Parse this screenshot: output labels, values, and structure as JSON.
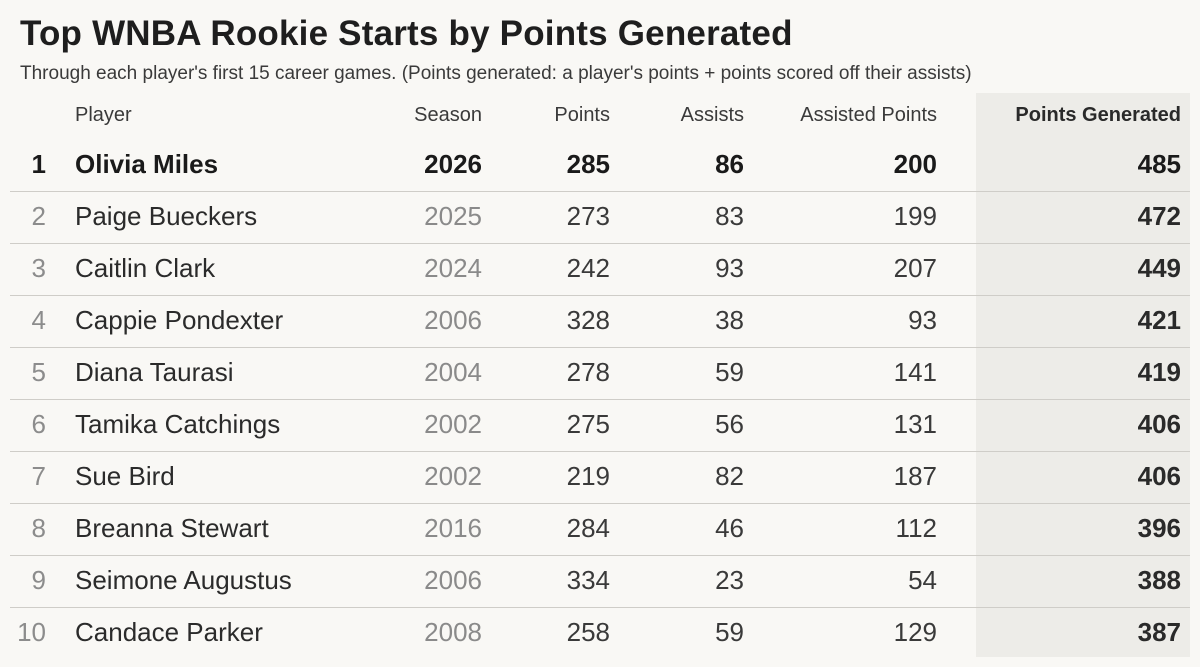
{
  "chart_data": {
    "type": "table",
    "title": "Top WNBA Rookie Starts by Points Generated",
    "subtitle": "Through each player's first 15 career games. (Points generated: a player's points + points scored off their assists)",
    "columns": [
      "Player",
      "Season",
      "Points",
      "Assists",
      "Assisted Points",
      "Points Generated"
    ],
    "rows": [
      {
        "rank": "1",
        "player": "Olivia Miles",
        "season": "2026",
        "points": "285",
        "assists": "86",
        "assisted_points": "200",
        "points_generated": "485"
      },
      {
        "rank": "2",
        "player": "Paige Bueckers",
        "season": "2025",
        "points": "273",
        "assists": "83",
        "assisted_points": "199",
        "points_generated": "472"
      },
      {
        "rank": "3",
        "player": "Caitlin Clark",
        "season": "2024",
        "points": "242",
        "assists": "93",
        "assisted_points": "207",
        "points_generated": "449"
      },
      {
        "rank": "4",
        "player": "Cappie Pondexter",
        "season": "2006",
        "points": "328",
        "assists": "38",
        "assisted_points": "93",
        "points_generated": "421"
      },
      {
        "rank": "5",
        "player": "Diana Taurasi",
        "season": "2004",
        "points": "278",
        "assists": "59",
        "assisted_points": "141",
        "points_generated": "419"
      },
      {
        "rank": "6",
        "player": "Tamika Catchings",
        "season": "2002",
        "points": "275",
        "assists": "56",
        "assisted_points": "131",
        "points_generated": "406"
      },
      {
        "rank": "7",
        "player": "Sue Bird",
        "season": "2002",
        "points": "219",
        "assists": "82",
        "assisted_points": "187",
        "points_generated": "406"
      },
      {
        "rank": "8",
        "player": "Breanna Stewart",
        "season": "2016",
        "points": "284",
        "assists": "46",
        "assisted_points": "112",
        "points_generated": "396"
      },
      {
        "rank": "9",
        "player": "Seimone Augustus",
        "season": "2006",
        "points": "334",
        "assists": "23",
        "assisted_points": "54",
        "points_generated": "388"
      },
      {
        "rank": "10",
        "player": "Candace Parker",
        "season": "2008",
        "points": "258",
        "assists": "59",
        "assisted_points": "129",
        "points_generated": "387"
      }
    ]
  }
}
